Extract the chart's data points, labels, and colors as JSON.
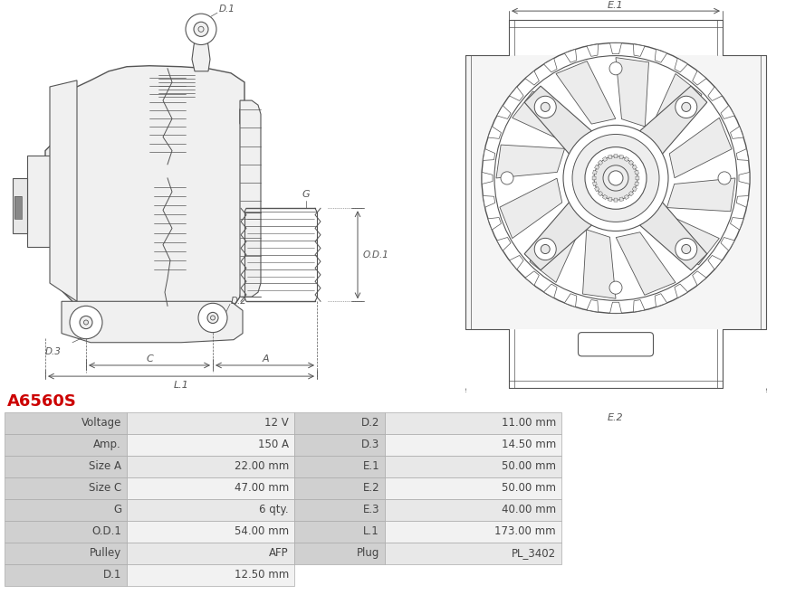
{
  "title": "A6560S",
  "title_color": "#cc0000",
  "bg_color": "#ffffff",
  "table_rows": [
    [
      "Voltage",
      "12 V",
      "D.2",
      "11.00 mm"
    ],
    [
      "Amp.",
      "150 A",
      "D.3",
      "14.50 mm"
    ],
    [
      "Size A",
      "22.00 mm",
      "E.1",
      "50.00 mm"
    ],
    [
      "Size C",
      "47.00 mm",
      "E.2",
      "50.00 mm"
    ],
    [
      "G",
      "6 qty.",
      "E.3",
      "40.00 mm"
    ],
    [
      "O.D.1",
      "54.00 mm",
      "L.1",
      "173.00 mm"
    ],
    [
      "Pulley",
      "AFP",
      "Plug",
      "PL_3402"
    ],
    [
      "D.1",
      "12.50 mm",
      "",
      ""
    ]
  ],
  "line_color": "#555555",
  "dim_color": "#555555",
  "fill_light": "#f0f0f0",
  "fill_mid": "#e8e8e8",
  "header_bg": "#d0d0d0",
  "row_bg_alt": "#e8e8e8",
  "row_bg": "#f2f2f2",
  "border_color": "#aaaaaa",
  "text_color": "#444444"
}
